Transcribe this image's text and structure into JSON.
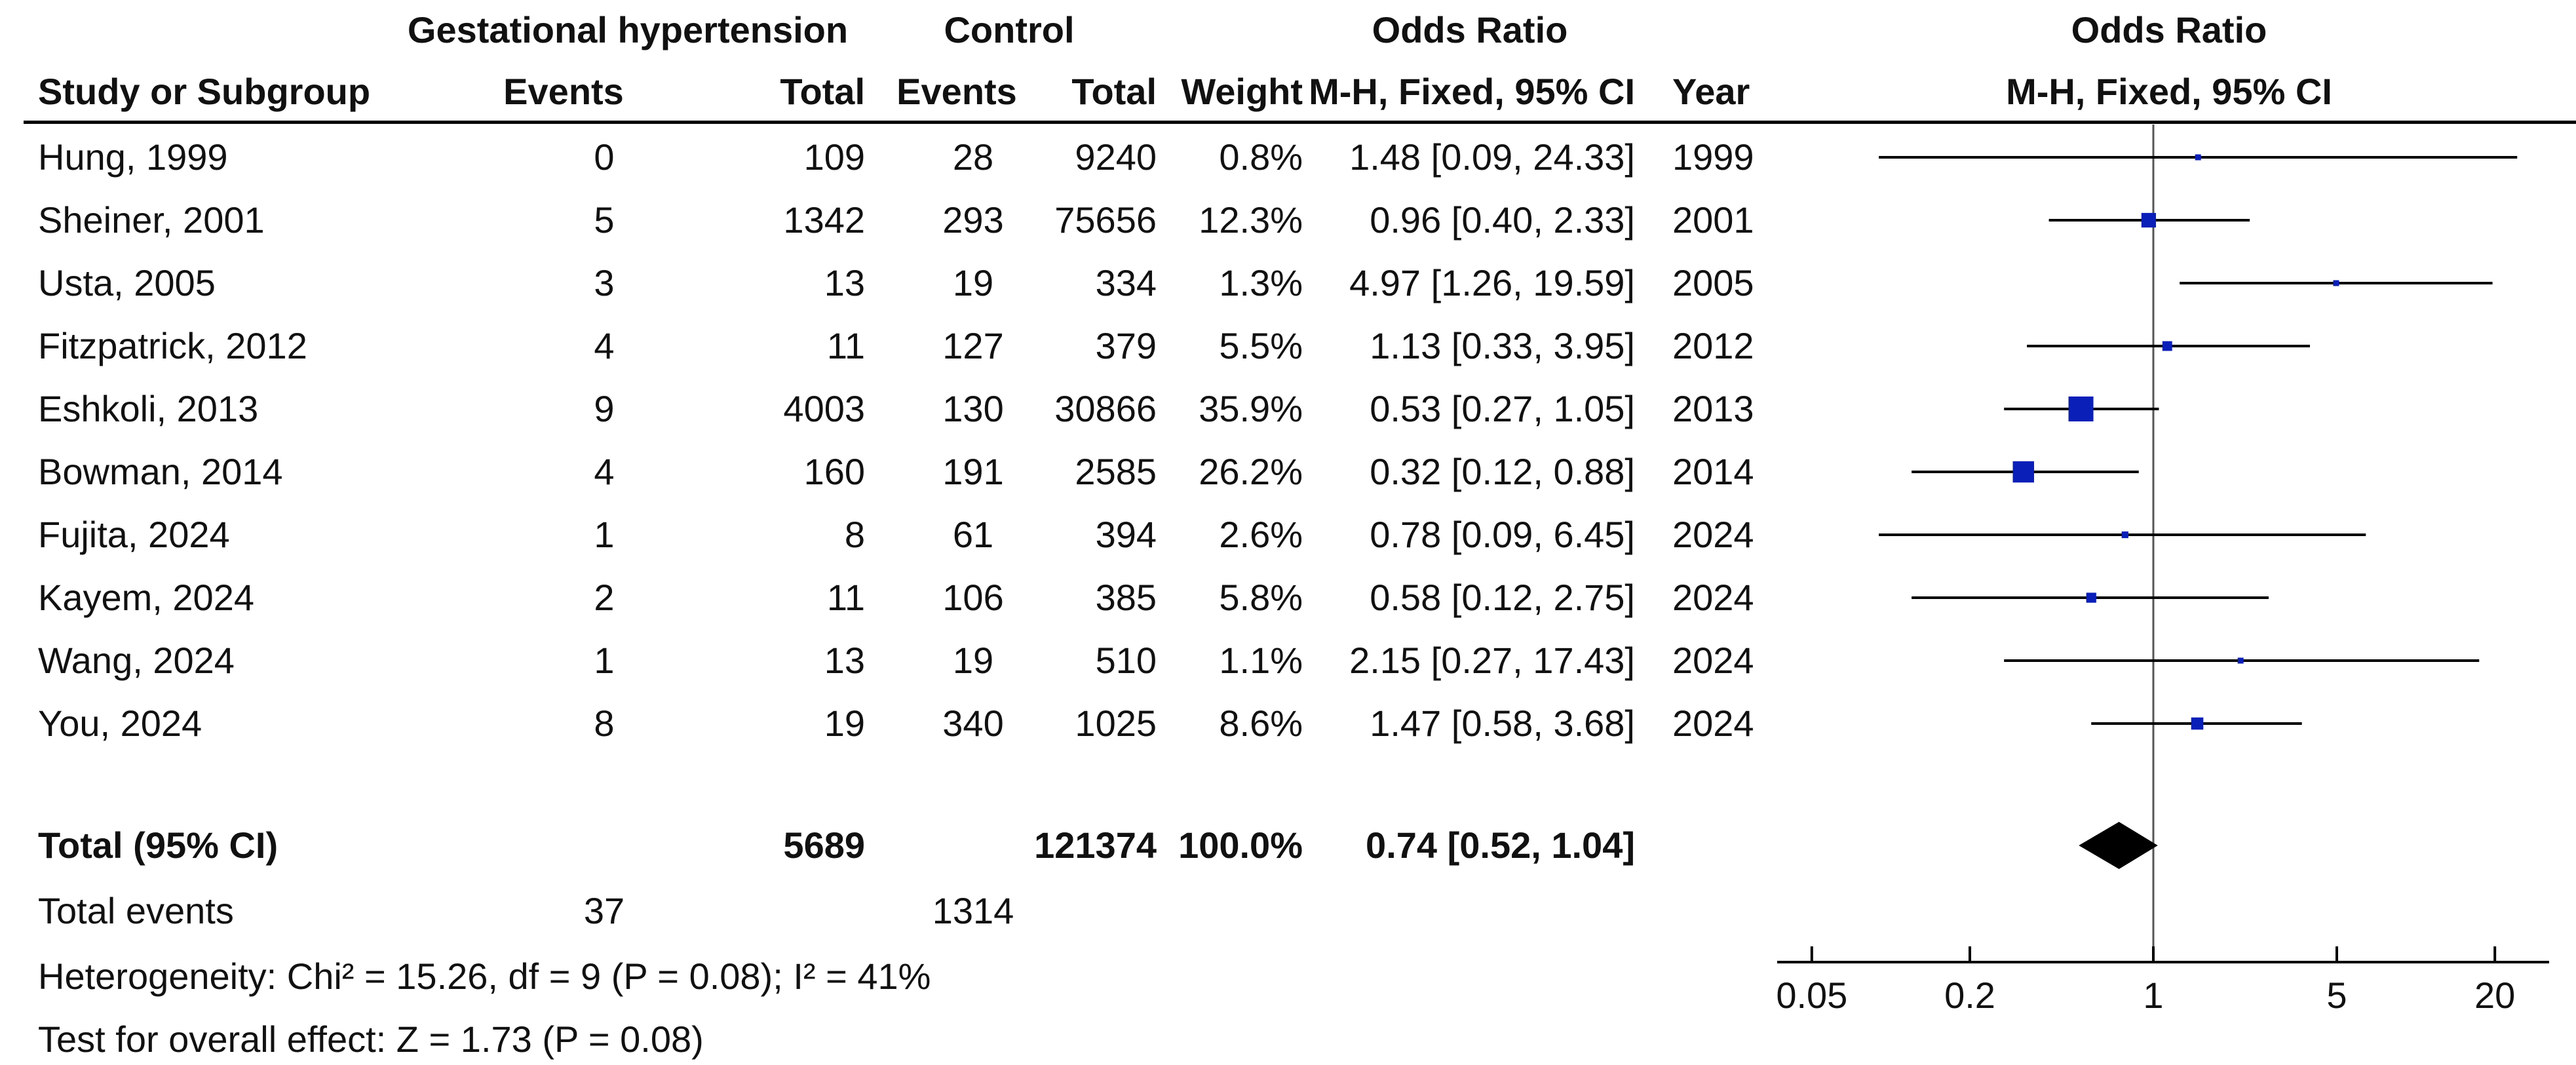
{
  "header": {
    "group1": "Gestational hypertension",
    "group2": "Control",
    "or_text_header": "Odds Ratio",
    "or_plot_header": "Odds Ratio",
    "study_col": "Study or Subgroup",
    "events1": "Events",
    "total1": "Total",
    "events2": "Events",
    "total2": "Total",
    "weight": "Weight",
    "method_text": "M-H, Fixed, 95% CI",
    "year": "Year",
    "method_plot": "M-H, Fixed, 95% CI"
  },
  "studies": [
    {
      "name": "Hung, 1999",
      "e1": "0",
      "n1": "109",
      "e2": "28",
      "n2": "9240",
      "weight": "0.8%",
      "ci_text": "1.48 [0.09, 24.33]",
      "year": "1999"
    },
    {
      "name": "Sheiner, 2001",
      "e1": "5",
      "n1": "1342",
      "e2": "293",
      "n2": "75656",
      "weight": "12.3%",
      "ci_text": "0.96 [0.40, 2.33]",
      "year": "2001"
    },
    {
      "name": "Usta, 2005",
      "e1": "3",
      "n1": "13",
      "e2": "19",
      "n2": "334",
      "weight": "1.3%",
      "ci_text": "4.97 [1.26, 19.59]",
      "year": "2005"
    },
    {
      "name": "Fitzpatrick, 2012",
      "e1": "4",
      "n1": "11",
      "e2": "127",
      "n2": "379",
      "weight": "5.5%",
      "ci_text": "1.13 [0.33, 3.95]",
      "year": "2012"
    },
    {
      "name": "Eshkoli, 2013",
      "e1": "9",
      "n1": "4003",
      "e2": "130",
      "n2": "30866",
      "weight": "35.9%",
      "ci_text": "0.53 [0.27, 1.05]",
      "year": "2013"
    },
    {
      "name": "Bowman, 2014",
      "e1": "4",
      "n1": "160",
      "e2": "191",
      "n2": "2585",
      "weight": "26.2%",
      "ci_text": "0.32 [0.12, 0.88]",
      "year": "2014"
    },
    {
      "name": "Fujita, 2024",
      "e1": "1",
      "n1": "8",
      "e2": "61",
      "n2": "394",
      "weight": "2.6%",
      "ci_text": "0.78 [0.09, 6.45]",
      "year": "2024"
    },
    {
      "name": "Kayem, 2024",
      "e1": "2",
      "n1": "11",
      "e2": "106",
      "n2": "385",
      "weight": "5.8%",
      "ci_text": "0.58 [0.12, 2.75]",
      "year": "2024"
    },
    {
      "name": "Wang, 2024",
      "e1": "1",
      "n1": "13",
      "e2": "19",
      "n2": "510",
      "weight": "1.1%",
      "ci_text": "2.15 [0.27, 17.43]",
      "year": "2024"
    },
    {
      "name": "You, 2024",
      "e1": "8",
      "n1": "19",
      "e2": "340",
      "n2": "1025",
      "weight": "8.6%",
      "ci_text": "1.47 [0.58, 3.68]",
      "year": "2024"
    }
  ],
  "total": {
    "label": "Total (95% CI)",
    "n1": "5689",
    "n2": "121374",
    "weight": "100.0%",
    "ci_text": "0.74 [0.52, 1.04]"
  },
  "total_events": {
    "label": "Total events",
    "e1": "37",
    "e2": "1314"
  },
  "heterogeneity": "Heterogeneity: Chi² = 15.26, df = 9 (P = 0.08); I² = 41%",
  "overall_effect": "Test for overall effect: Z = 1.73 (P = 0.08)",
  "colors": {
    "marker": "#0a1fb8",
    "line": "#000000",
    "null_line": "#555555"
  },
  "chart_data": {
    "type": "forest",
    "scale": "log",
    "xlim": [
      0.05,
      20
    ],
    "xticks": [
      0.05,
      0.2,
      1,
      5,
      20
    ],
    "xtick_labels": [
      "0.05",
      "0.2",
      "1",
      "5",
      "20"
    ],
    "null_value": 1,
    "studies": [
      {
        "label": "Hung, 1999",
        "or": 1.48,
        "lo": 0.09,
        "hi": 24.33,
        "weight": 0.8
      },
      {
        "label": "Sheiner, 2001",
        "or": 0.96,
        "lo": 0.4,
        "hi": 2.33,
        "weight": 12.3
      },
      {
        "label": "Usta, 2005",
        "or": 4.97,
        "lo": 1.26,
        "hi": 19.59,
        "weight": 1.3
      },
      {
        "label": "Fitzpatrick, 2012",
        "or": 1.13,
        "lo": 0.33,
        "hi": 3.95,
        "weight": 5.5
      },
      {
        "label": "Eshkoli, 2013",
        "or": 0.53,
        "lo": 0.27,
        "hi": 1.05,
        "weight": 35.9
      },
      {
        "label": "Bowman, 2014",
        "or": 0.32,
        "lo": 0.12,
        "hi": 0.88,
        "weight": 26.2
      },
      {
        "label": "Fujita, 2024",
        "or": 0.78,
        "lo": 0.09,
        "hi": 6.45,
        "weight": 2.6
      },
      {
        "label": "Kayem, 2024",
        "or": 0.58,
        "lo": 0.12,
        "hi": 2.75,
        "weight": 5.8
      },
      {
        "label": "Wang, 2024",
        "or": 2.15,
        "lo": 0.27,
        "hi": 17.43,
        "weight": 1.1
      },
      {
        "label": "You, 2024",
        "or": 1.47,
        "lo": 0.58,
        "hi": 3.68,
        "weight": 8.6
      }
    ],
    "pooled": {
      "label": "Total (95% CI)",
      "or": 0.74,
      "lo": 0.52,
      "hi": 1.04
    }
  }
}
